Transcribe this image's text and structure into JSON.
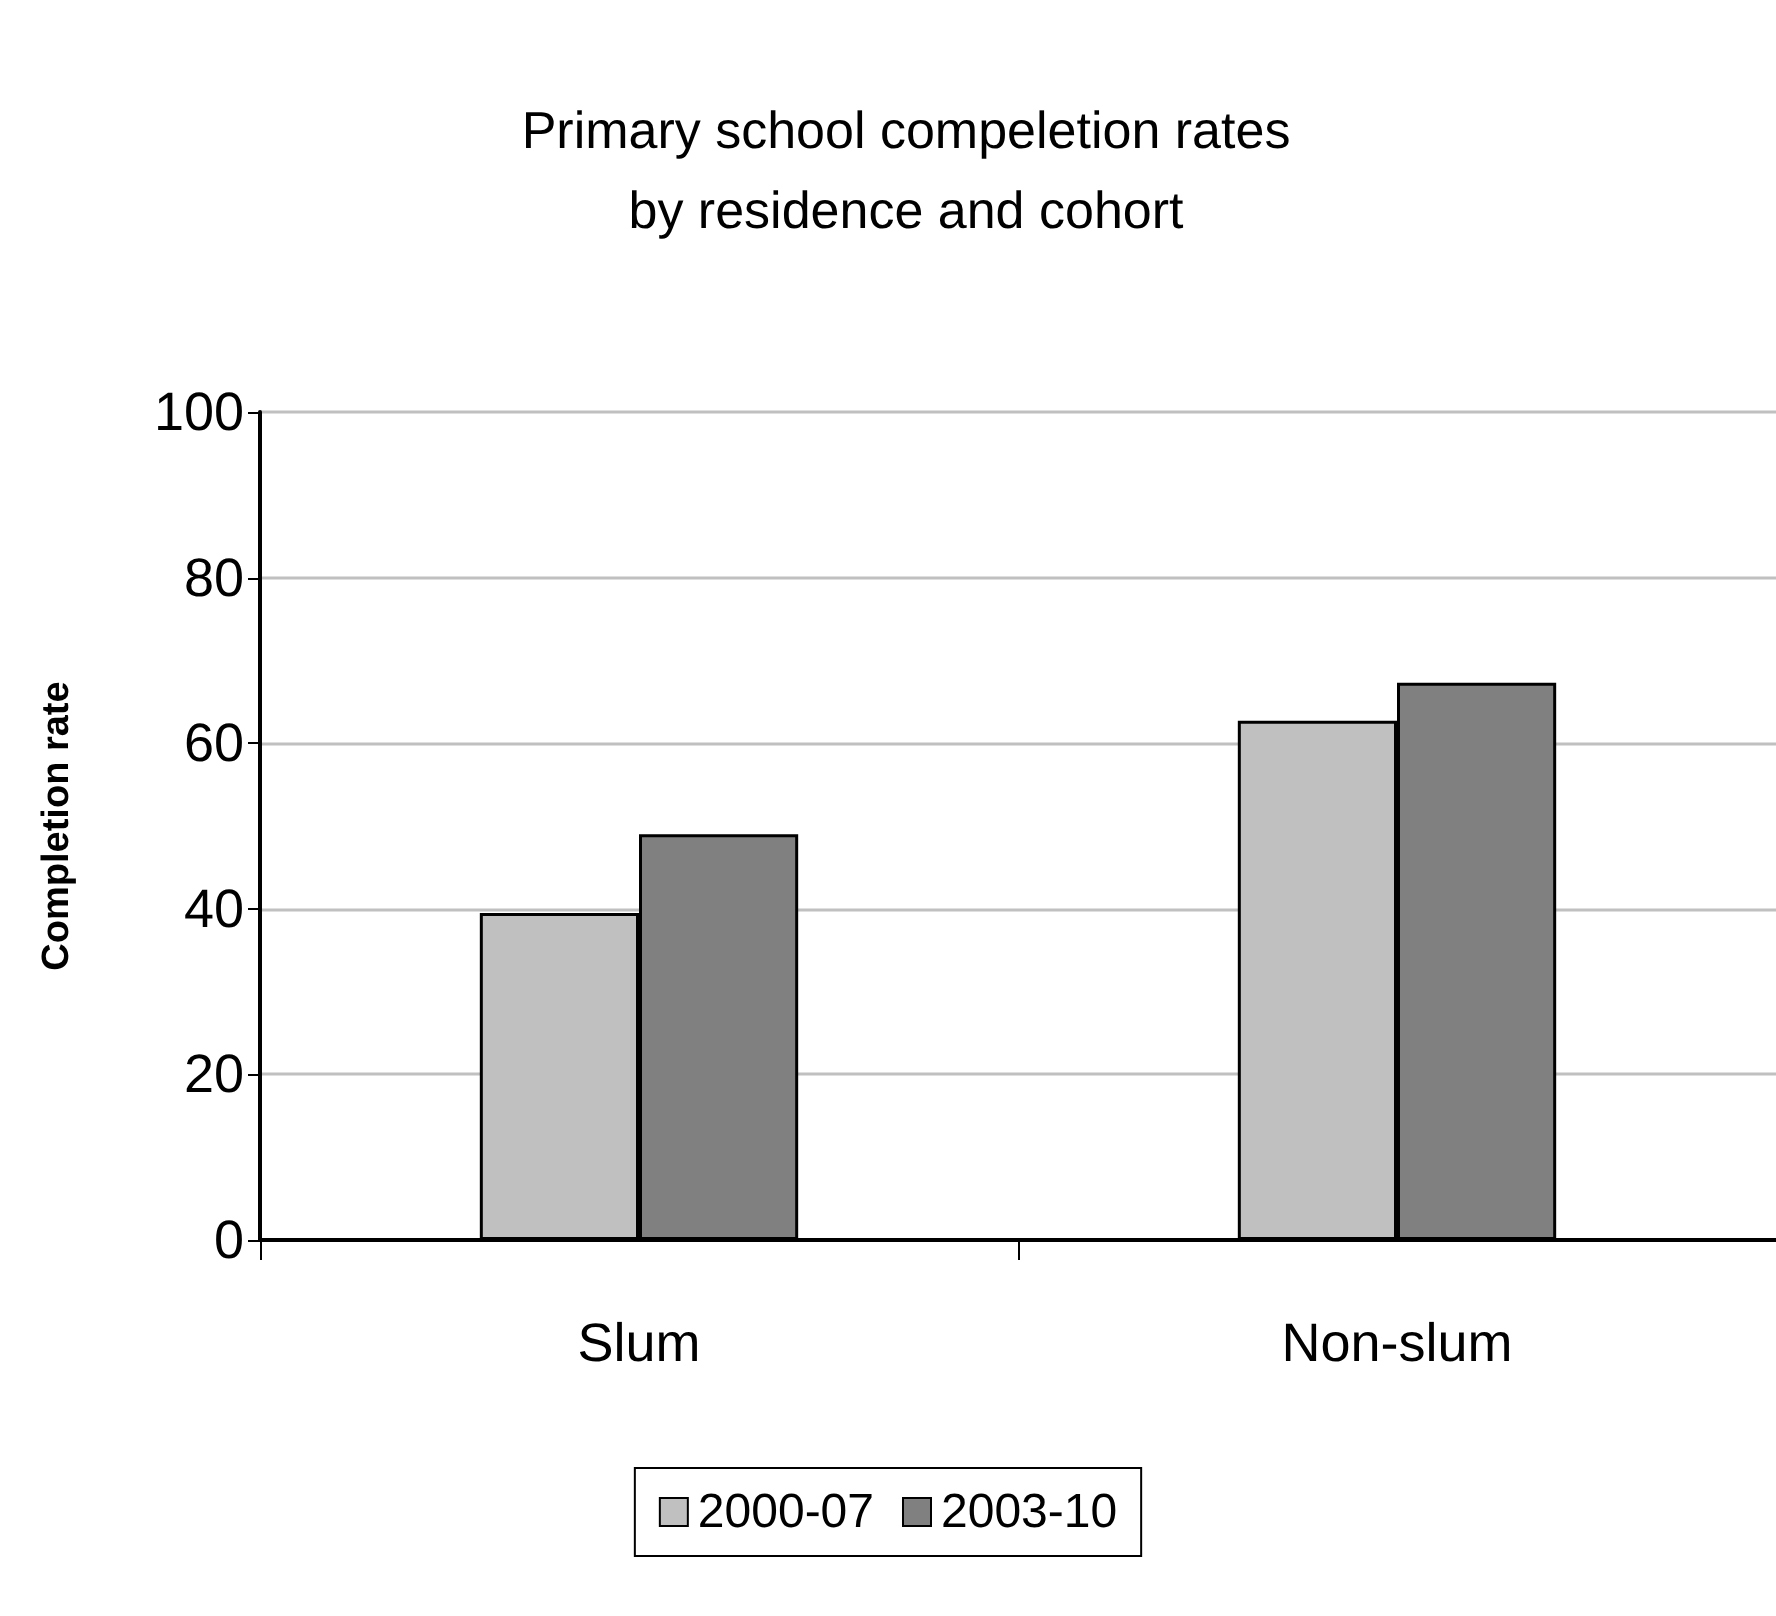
{
  "chart_data": {
    "type": "bar",
    "title": "Primary school compeletion rates\nby residence and cohort",
    "ylabel": "Completion rate",
    "categories": [
      "Slum",
      "Non-slum"
    ],
    "series": [
      {
        "name": "2000-07",
        "color": "#c0c0c0",
        "values": [
          39.5,
          62.7
        ]
      },
      {
        "name": "2003-10",
        "color": "#808080",
        "values": [
          49,
          67.3
        ]
      }
    ],
    "ylim": [
      0,
      100
    ],
    "yticks": [
      0,
      20,
      40,
      60,
      80,
      100
    ],
    "grid": "y",
    "legend": "bottom"
  }
}
